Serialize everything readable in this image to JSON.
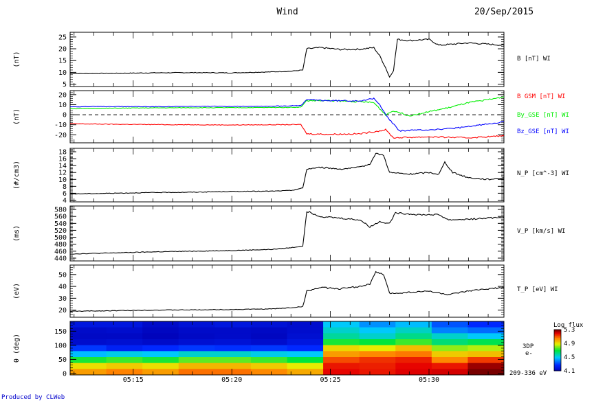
{
  "header": {
    "mission": "Wind",
    "date": "20/Sep/2015"
  },
  "footer": {
    "credit": "Produced by CLWeb"
  },
  "chart_data": {
    "type": "line",
    "x_axis": {
      "ticks": [
        "05:15",
        "05:20",
        "05:25",
        "05:30"
      ],
      "range_minutes": [
        11.8,
        33.8
      ],
      "tick_minutes": [
        15,
        20,
        25,
        30
      ]
    },
    "panels": [
      {
        "name": "btot",
        "ylabel": "(nT)",
        "yticks": [
          5,
          10,
          15,
          20,
          25
        ],
        "ylim": [
          4,
          27
        ],
        "series": [
          {
            "name": "B [nT] WI",
            "color": "#000000",
            "points": [
              [
                11.8,
                9.5
              ],
              [
                14,
                9.6
              ],
              [
                16,
                9.8
              ],
              [
                18,
                9.9
              ],
              [
                20,
                9.8
              ],
              [
                22,
                10.2
              ],
              [
                23,
                10.5
              ],
              [
                23.6,
                11
              ],
              [
                23.8,
                20
              ],
              [
                24.5,
                20.5
              ],
              [
                25.5,
                19.7
              ],
              [
                26.5,
                19.8
              ],
              [
                27.2,
                20.5
              ],
              [
                27.5,
                17
              ],
              [
                27.8,
                12
              ],
              [
                28,
                8
              ],
              [
                28.2,
                11
              ],
              [
                28.4,
                24
              ],
              [
                29,
                23.5
              ],
              [
                30,
                24
              ],
              [
                30.5,
                21.5
              ],
              [
                32,
                22.5
              ],
              [
                33.8,
                21.5
              ]
            ]
          }
        ]
      },
      {
        "name": "bcomp",
        "ylabel": "(nT)",
        "yticks": [
          -20,
          -10,
          0,
          10,
          20
        ],
        "ylim": [
          -28,
          24
        ],
        "zero_line": true,
        "series": [
          {
            "name": "B GSM [nT] WI",
            "color": "#ff0000",
            "points": [
              [
                11.8,
                -9
              ],
              [
                14,
                -9.5
              ],
              [
                16,
                -9.8
              ],
              [
                18,
                -10
              ],
              [
                20,
                -10.2
              ],
              [
                22,
                -10
              ],
              [
                23.5,
                -9.8
              ],
              [
                23.8,
                -19
              ],
              [
                25,
                -19.5
              ],
              [
                26.5,
                -19
              ],
              [
                27.2,
                -17
              ],
              [
                27.8,
                -15
              ],
              [
                28.2,
                -23
              ],
              [
                30,
                -22
              ],
              [
                32,
                -23
              ],
              [
                33.8,
                -21
              ]
            ]
          },
          {
            "name": "By_GSE [nT] WI",
            "color": "#00ee00",
            "points": [
              [
                11.8,
                6
              ],
              [
                14,
                6.5
              ],
              [
                16,
                6.8
              ],
              [
                18,
                7
              ],
              [
                20,
                7
              ],
              [
                22,
                7.2
              ],
              [
                23.5,
                7.5
              ],
              [
                23.8,
                14
              ],
              [
                25,
                14
              ],
              [
                26.5,
                13
              ],
              [
                27.2,
                12
              ],
              [
                27.8,
                0
              ],
              [
                28.2,
                4
              ],
              [
                29,
                -1
              ],
              [
                30,
                3
              ],
              [
                31,
                7
              ],
              [
                32,
                12
              ],
              [
                33,
                15
              ],
              [
                33.8,
                18
              ]
            ]
          },
          {
            "name": "Bz_GSE [nT] WI",
            "color": "#0000ff",
            "points": [
              [
                11.8,
                8
              ],
              [
                14,
                8.2
              ],
              [
                16,
                8
              ],
              [
                18,
                8.3
              ],
              [
                20,
                8.4
              ],
              [
                22,
                8.6
              ],
              [
                23.5,
                9
              ],
              [
                23.8,
                15
              ],
              [
                25,
                14
              ],
              [
                26.5,
                14
              ],
              [
                27.2,
                16
              ],
              [
                27.5,
                10
              ],
              [
                28,
                -5
              ],
              [
                28.5,
                -16
              ],
              [
                30,
                -15
              ],
              [
                31,
                -14
              ],
              [
                32,
                -12
              ],
              [
                33,
                -9
              ],
              [
                33.8,
                -7
              ]
            ]
          }
        ]
      },
      {
        "name": "density",
        "ylabel": "(#/cm3)",
        "yticks": [
          4,
          6,
          8,
          10,
          12,
          14,
          16,
          18
        ],
        "ylim": [
          3.5,
          19
        ],
        "series": [
          {
            "name": "N_P [cm^-3] WI",
            "color": "#000000",
            "points": [
              [
                11.8,
                5.8
              ],
              [
                14,
                6
              ],
              [
                16,
                6.2
              ],
              [
                18,
                6.3
              ],
              [
                20,
                6.5
              ],
              [
                22,
                6.6
              ],
              [
                23,
                6.8
              ],
              [
                23.6,
                7.5
              ],
              [
                23.8,
                13
              ],
              [
                24.5,
                13.5
              ],
              [
                25.5,
                13
              ],
              [
                26.5,
                13.5
              ],
              [
                27,
                14.5
              ],
              [
                27.3,
                17.5
              ],
              [
                27.7,
                17
              ],
              [
                28,
                12
              ],
              [
                29,
                11.5
              ],
              [
                30,
                12
              ],
              [
                30.5,
                11.5
              ],
              [
                30.8,
                15
              ],
              [
                31.2,
                12
              ],
              [
                32,
                10.5
              ],
              [
                33,
                10
              ],
              [
                33.8,
                10.5
              ]
            ]
          }
        ]
      },
      {
        "name": "velocity",
        "ylabel": "(ms)",
        "yticks": [
          440,
          460,
          480,
          500,
          520,
          540,
          560,
          580
        ],
        "ylim": [
          432,
          590
        ],
        "series": [
          {
            "name": "V_P [km/s] WI",
            "color": "#000000",
            "points": [
              [
                11.8,
                452
              ],
              [
                14,
                455
              ],
              [
                16,
                458
              ],
              [
                18,
                460
              ],
              [
                20,
                462
              ],
              [
                22,
                465
              ],
              [
                23,
                470
              ],
              [
                23.6,
                475
              ],
              [
                23.8,
                575
              ],
              [
                24.5,
                560
              ],
              [
                25.5,
                555
              ],
              [
                26.5,
                550
              ],
              [
                27,
                530
              ],
              [
                27.5,
                545
              ],
              [
                28,
                540
              ],
              [
                28.3,
                570
              ],
              [
                29.5,
                565
              ],
              [
                30.5,
                565
              ],
              [
                31,
                550
              ],
              [
                32,
                552
              ],
              [
                33,
                555
              ],
              [
                33.8,
                558
              ]
            ]
          }
        ]
      },
      {
        "name": "temperature",
        "ylabel": "(eV)",
        "yticks": [
          20,
          30,
          40,
          50
        ],
        "ylim": [
          14,
          58
        ],
        "series": [
          {
            "name": "T_P [eV] WI",
            "color": "#000000",
            "points": [
              [
                11.8,
                19
              ],
              [
                14,
                19.5
              ],
              [
                16,
                20
              ],
              [
                18,
                20.2
              ],
              [
                20,
                20.5
              ],
              [
                22,
                21
              ],
              [
                23,
                22
              ],
              [
                23.6,
                23
              ],
              [
                23.8,
                36
              ],
              [
                24.5,
                39
              ],
              [
                25.5,
                38
              ],
              [
                26.5,
                40
              ],
              [
                27,
                42
              ],
              [
                27.3,
                52
              ],
              [
                27.7,
                50
              ],
              [
                28,
                34
              ],
              [
                29,
                35
              ],
              [
                30,
                36
              ],
              [
                31,
                33
              ],
              [
                32,
                36
              ],
              [
                33,
                38
              ],
              [
                33.8,
                39
              ]
            ]
          }
        ]
      }
    ],
    "spectrogram": {
      "type": "heatmap",
      "ylabel": "θ (deg)",
      "yticks": [
        0,
        50,
        100,
        150
      ],
      "ylim": [
        -5,
        185
      ],
      "channel_label": "209-336 eV",
      "instrument": "3DP",
      "species": "e-",
      "colorbar": {
        "title": "Log flux",
        "ticks": [
          "5.3",
          "4.9",
          "4.5",
          "4.1"
        ]
      },
      "rows": 9,
      "columns": 12,
      "values": [
        [
          4.2,
          4.2,
          4.15,
          4.18,
          4.2,
          4.18,
          4.16,
          4.5,
          4.42,
          4.48,
          4.34,
          4.28
        ],
        [
          4.15,
          4.16,
          4.13,
          4.15,
          4.15,
          4.14,
          4.16,
          4.55,
          4.5,
          4.56,
          4.4,
          4.37
        ],
        [
          4.14,
          4.14,
          4.12,
          4.14,
          4.15,
          4.13,
          4.17,
          4.6,
          4.55,
          4.62,
          4.55,
          4.5
        ],
        [
          4.16,
          4.17,
          4.15,
          4.17,
          4.18,
          4.16,
          4.2,
          4.72,
          4.7,
          4.75,
          4.64,
          4.68
        ],
        [
          4.3,
          4.25,
          4.28,
          4.3,
          4.29,
          4.3,
          4.28,
          4.93,
          4.9,
          4.97,
          4.82,
          4.85
        ],
        [
          4.48,
          4.52,
          4.5,
          4.55,
          4.55,
          4.52,
          4.5,
          5.02,
          5.05,
          5.07,
          4.95,
          4.97
        ],
        [
          4.72,
          4.75,
          4.72,
          4.78,
          4.78,
          4.75,
          4.7,
          5.12,
          5.15,
          5.17,
          5.05,
          5.14
        ],
        [
          4.92,
          4.95,
          4.92,
          4.98,
          4.98,
          4.95,
          4.9,
          5.18,
          5.17,
          5.2,
          5.18,
          5.27
        ],
        [
          5.02,
          5.06,
          5.02,
          5.08,
          5.08,
          5.05,
          5.0,
          5.2,
          5.18,
          5.21,
          5.22,
          5.3
        ]
      ]
    }
  }
}
